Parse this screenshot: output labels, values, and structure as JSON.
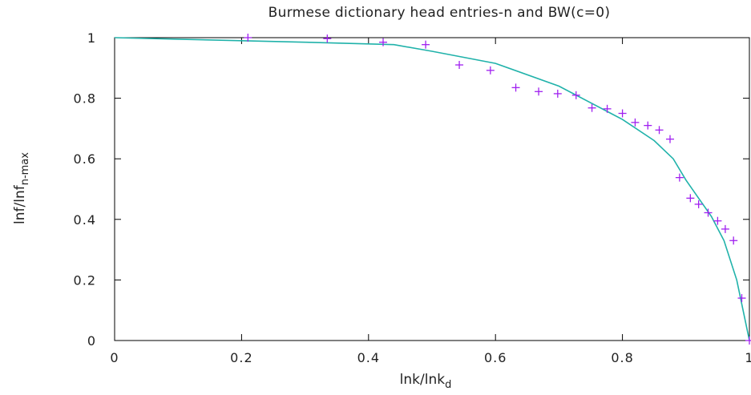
{
  "chart_data": {
    "type": "scatter",
    "title": "Burmese dictionary head entries-n and BW(c=0)",
    "xlabel": {
      "main": "lnk/lnk",
      "sub": "d"
    },
    "ylabel": {
      "main": "lnf/lnf",
      "sub": "n-max"
    },
    "xlim": [
      0,
      1
    ],
    "ylim": [
      0,
      1
    ],
    "xticks": [
      0,
      0.2,
      0.4,
      0.6,
      0.8,
      1
    ],
    "xtick_labels": [
      "0",
      "0.2",
      "0.4",
      "0.6",
      "0.8",
      "1"
    ],
    "yticks": [
      0,
      0.2,
      0.4,
      0.6,
      0.8,
      1
    ],
    "ytick_labels": [
      "0",
      "0.2",
      "0.4",
      "0.6",
      "0.8",
      "1"
    ],
    "grid": false,
    "legend": "none",
    "series": [
      {
        "type": "scatter",
        "marker": "plus",
        "color": "#a020f0",
        "points": [
          [
            0.21,
            1.0
          ],
          [
            0.335,
            0.997
          ],
          [
            0.423,
            0.985
          ],
          [
            0.49,
            0.977
          ],
          [
            0.543,
            0.91
          ],
          [
            0.592,
            0.892
          ],
          [
            0.632,
            0.835
          ],
          [
            0.668,
            0.822
          ],
          [
            0.698,
            0.815
          ],
          [
            0.727,
            0.81
          ],
          [
            0.752,
            0.768
          ],
          [
            0.776,
            0.765
          ],
          [
            0.8,
            0.75
          ],
          [
            0.82,
            0.72
          ],
          [
            0.84,
            0.71
          ],
          [
            0.858,
            0.695
          ],
          [
            0.875,
            0.665
          ],
          [
            0.89,
            0.538
          ],
          [
            0.907,
            0.47
          ],
          [
            0.92,
            0.45
          ],
          [
            0.935,
            0.422
          ],
          [
            0.95,
            0.395
          ],
          [
            0.962,
            0.368
          ],
          [
            0.975,
            0.33
          ],
          [
            0.988,
            0.14
          ],
          [
            1.0,
            0.0
          ]
        ]
      },
      {
        "type": "line",
        "color": "#20b2aa",
        "points": [
          [
            0,
            1.0
          ],
          [
            0.1,
            0.995
          ],
          [
            0.2,
            0.99
          ],
          [
            0.3,
            0.985
          ],
          [
            0.44,
            0.977
          ],
          [
            0.5,
            0.955
          ],
          [
            0.6,
            0.915
          ],
          [
            0.7,
            0.84
          ],
          [
            0.8,
            0.73
          ],
          [
            0.85,
            0.66
          ],
          [
            0.88,
            0.6
          ],
          [
            0.9,
            0.53
          ],
          [
            0.92,
            0.47
          ],
          [
            0.94,
            0.41
          ],
          [
            0.96,
            0.33
          ],
          [
            0.98,
            0.2
          ],
          [
            0.99,
            0.1
          ],
          [
            1.0,
            0.0
          ]
        ]
      }
    ]
  }
}
